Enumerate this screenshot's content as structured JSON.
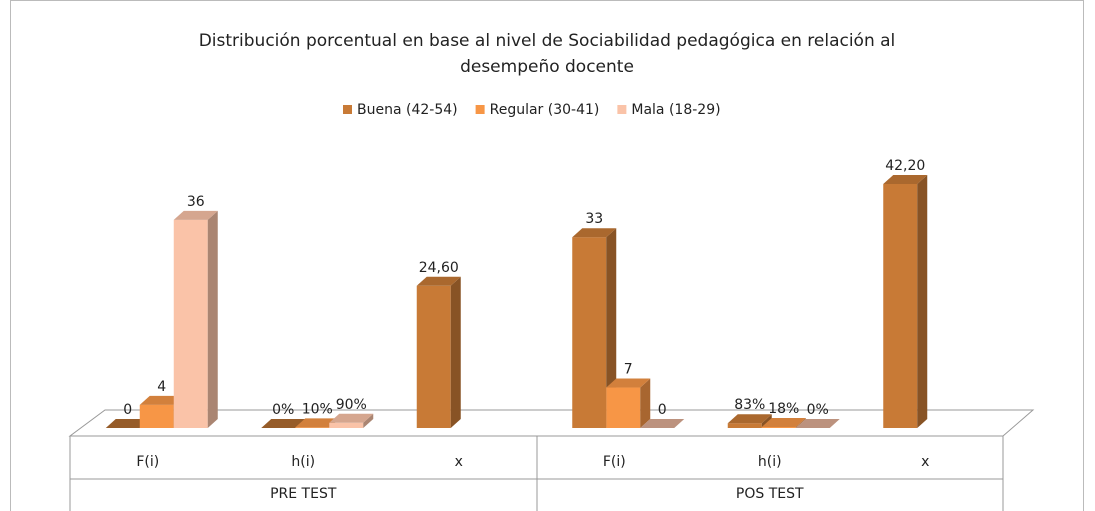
{
  "chart_data": {
    "type": "bar3d",
    "title": "Distribución porcentual en base al nivel de Sociabilidad pedagógica en relación al desempeño docente",
    "categories": [
      "F(i)",
      "h(i)",
      "x",
      "F(i)",
      "h(i)",
      "x"
    ],
    "groups": [
      "PRE TEST",
      "POS TEST"
    ],
    "legend": "top",
    "series": [
      {
        "name": "Buena (42-54)",
        "color": "#c87a36",
        "values": [
          0,
          0,
          24.6,
          33,
          0.83,
          42.2
        ],
        "value_labels": [
          "0",
          "0%",
          "24,60",
          "33",
          "83%",
          "42,20"
        ]
      },
      {
        "name": "Regular (30-41)",
        "color": "#f79646",
        "values": [
          4,
          0.1,
          null,
          7,
          0.18,
          null
        ],
        "value_labels": [
          "4",
          "10%",
          null,
          "7",
          "18%",
          null
        ]
      },
      {
        "name": "Mala (18-29)",
        "color": "#fac3a8",
        "values": [
          36,
          0.9,
          null,
          0,
          0,
          null
        ],
        "value_labels": [
          "36",
          "90%",
          null,
          "0",
          "0%",
          null
        ]
      }
    ]
  }
}
